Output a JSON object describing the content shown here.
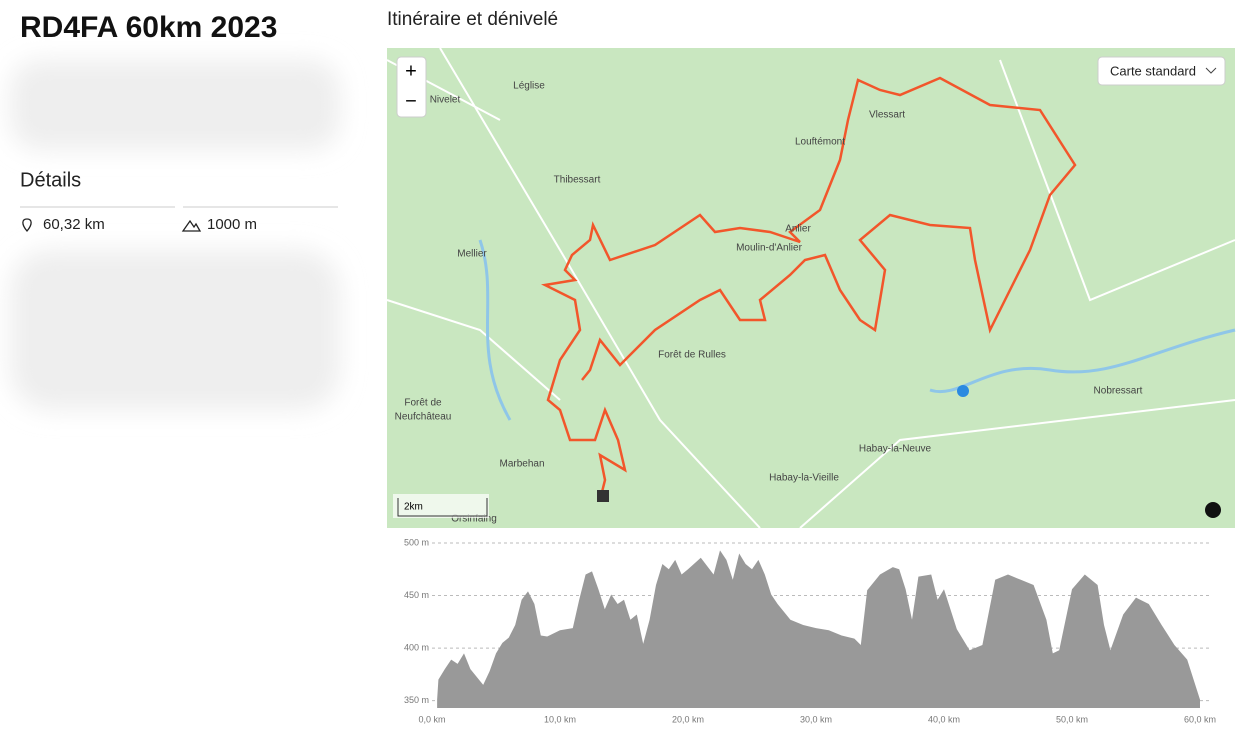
{
  "header": {
    "title": "RD4FA 60km 2023"
  },
  "details": {
    "heading": "Détails",
    "distance": "60,32 km",
    "elevation_gain": "1000 m"
  },
  "section": {
    "title": "Itinéraire et dénivelé"
  },
  "map": {
    "zoom_in": "+",
    "zoom_out": "−",
    "style_button": "Carte standard",
    "scale": "2km",
    "places": [
      "Léglise",
      "Nivelet",
      "Vlessart",
      "Louftémont",
      "Thibessart",
      "Anlier",
      "Moulin-d'Anlier",
      "Mellier",
      "Forêt de Rulles",
      "Forêt de",
      "Neufchâteau",
      "Nobressart",
      "Habay-la-Neuve",
      "Habay-la-Vieille",
      "Marbehan",
      "Orsinfaing"
    ]
  },
  "chart_data": {
    "type": "area",
    "color": "#999999",
    "x": [
      0.4,
      0.5,
      1,
      1.5,
      2,
      2.5,
      3,
      4,
      4.5,
      5,
      5.5,
      6,
      6.5,
      7,
      7.5,
      8,
      8.5,
      9,
      10,
      11,
      11.5,
      12,
      12.5,
      13,
      13.5,
      14,
      14.5,
      15,
      15.5,
      16,
      16.5,
      17,
      17.5,
      18,
      18.5,
      19,
      19.5,
      20,
      21,
      22,
      22.5,
      23,
      23.5,
      24,
      24.5,
      25,
      25.5,
      26,
      26.5,
      27,
      28,
      29,
      30,
      31,
      32,
      33,
      33.5,
      34,
      35,
      36,
      36.5,
      37,
      37.5,
      38,
      39,
      39.5,
      40,
      41,
      42,
      43,
      44,
      45,
      46,
      47,
      48,
      48.5,
      49,
      50,
      51,
      52,
      52.5,
      53,
      54,
      55,
      56,
      57,
      58,
      59,
      60
    ],
    "values": [
      351,
      370,
      380,
      389,
      385,
      395,
      380,
      365,
      378,
      395,
      405,
      410,
      422,
      446,
      454,
      442,
      412,
      411,
      417,
      419,
      446,
      470,
      473,
      456,
      437,
      451,
      442,
      446,
      427,
      432,
      404,
      427,
      460,
      480,
      475,
      484,
      470,
      475,
      486,
      470,
      493,
      484,
      465,
      490,
      480,
      475,
      484,
      470,
      451,
      442,
      427,
      422,
      419,
      417,
      412,
      409,
      403,
      455,
      470,
      477,
      475,
      456,
      427,
      468,
      470,
      446,
      456,
      418,
      398,
      403,
      465,
      470,
      465,
      460,
      427,
      395,
      398,
      456,
      470,
      460,
      422,
      398,
      432,
      448,
      442,
      422,
      403,
      389,
      351
    ],
    "xlim": [
      0,
      60
    ],
    "ylim": [
      343,
      500
    ],
    "xticks": [
      {
        "value": 0,
        "label": "0,0 km"
      },
      {
        "value": 10,
        "label": "10,0 km"
      },
      {
        "value": 20,
        "label": "20,0 km"
      },
      {
        "value": 30,
        "label": "30,0 km"
      },
      {
        "value": 40,
        "label": "40,0 km"
      },
      {
        "value": 50,
        "label": "50,0 km"
      },
      {
        "value": 60,
        "label": "60,0 km"
      }
    ],
    "yticks": [
      {
        "value": 350,
        "label": "350 m"
      },
      {
        "value": 400,
        "label": "400 m"
      },
      {
        "value": 450,
        "label": "450 m"
      },
      {
        "value": 500,
        "label": "500 m"
      }
    ],
    "grid": true
  }
}
